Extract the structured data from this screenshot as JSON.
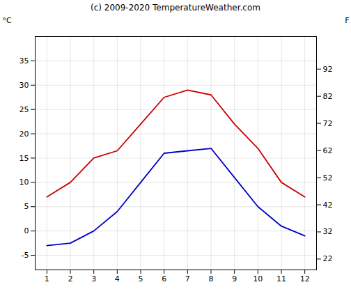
{
  "chart_data": {
    "type": "line",
    "title": "(c) 2009-2020 TemperatureWeather.com",
    "x": [
      1,
      2,
      3,
      4,
      5,
      6,
      7,
      8,
      9,
      10,
      11,
      12
    ],
    "xlim": [
      0.5,
      12.5
    ],
    "xticks": [
      1,
      2,
      3,
      4,
      5,
      6,
      7,
      8,
      9,
      10,
      11,
      12
    ],
    "ylabel": "°C",
    "ylim": [
      -8,
      40
    ],
    "yticks": [
      -5,
      0,
      5,
      10,
      15,
      20,
      25,
      30,
      35
    ],
    "y2label": "F",
    "y2lim": [
      18,
      104
    ],
    "y2ticks": [
      22,
      32,
      42,
      52,
      62,
      72,
      82,
      92
    ],
    "grid": true,
    "series": [
      {
        "color": "#cc0000",
        "values": [
          7,
          10,
          15,
          16.5,
          22,
          27.5,
          29,
          28,
          22,
          17,
          10,
          7
        ]
      },
      {
        "color": "#0000cc",
        "values": [
          -3,
          -2.5,
          0,
          4,
          10,
          16,
          16.5,
          17,
          11,
          5,
          1,
          -1
        ]
      }
    ]
  }
}
